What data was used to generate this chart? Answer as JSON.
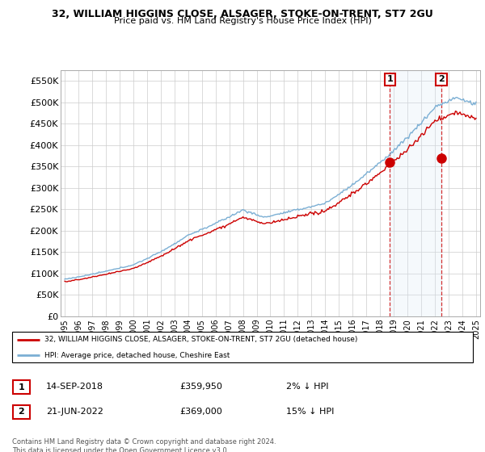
{
  "title": "32, WILLIAM HIGGINS CLOSE, ALSAGER, STOKE-ON-TRENT, ST7 2GU",
  "subtitle": "Price paid vs. HM Land Registry's House Price Index (HPI)",
  "ylim": [
    0,
    575000
  ],
  "xlim_start": 1994.7,
  "xlim_end": 2025.3,
  "hpi_color": "#7bafd4",
  "price_color": "#cc0000",
  "highlight_bg": "#daeaf7",
  "transaction1_x": 2018.71,
  "transaction1_y": 359950,
  "transaction2_x": 2022.47,
  "transaction2_y": 369000,
  "legend_line1": "32, WILLIAM HIGGINS CLOSE, ALSAGER, STOKE-ON-TRENT, ST7 2GU (detached house)",
  "legend_line2": "HPI: Average price, detached house, Cheshire East",
  "note1_label": "1",
  "note1_date": "14-SEP-2018",
  "note1_price": "£359,950",
  "note1_hpi": "2% ↓ HPI",
  "note2_label": "2",
  "note2_date": "21-JUN-2022",
  "note2_price": "£369,000",
  "note2_hpi": "15% ↓ HPI",
  "footer": "Contains HM Land Registry data © Crown copyright and database right 2024.\nThis data is licensed under the Open Government Licence v3.0.",
  "yticks": [
    0,
    50000,
    100000,
    150000,
    200000,
    250000,
    300000,
    350000,
    400000,
    450000,
    500000,
    550000
  ],
  "ylabels": [
    "£0",
    "£50K",
    "£100K",
    "£150K",
    "£200K",
    "£250K",
    "£300K",
    "£350K",
    "£400K",
    "£450K",
    "£500K",
    "£550K"
  ]
}
